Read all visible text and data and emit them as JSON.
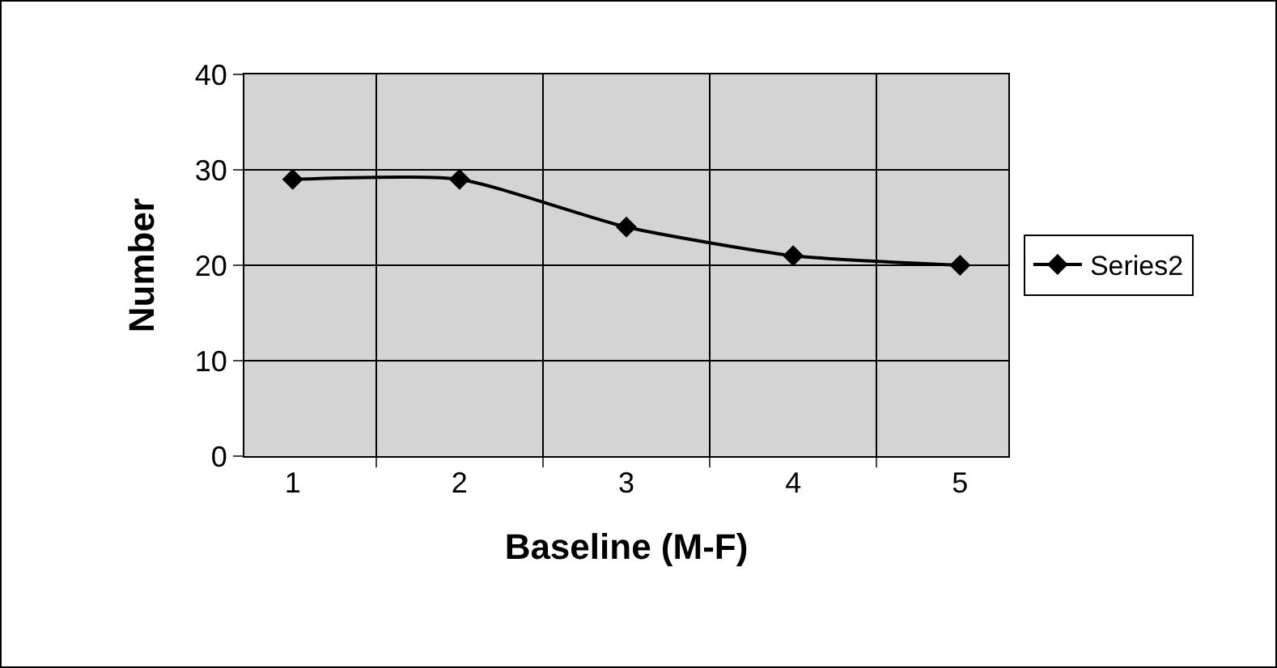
{
  "chart_data": {
    "type": "line",
    "xlabel": "Baseline (M-F)",
    "ylabel": "Number",
    "categories": [
      "1",
      "2",
      "3",
      "4",
      "5"
    ],
    "series": [
      {
        "name": "Series2",
        "color": "#000000",
        "values": [
          29,
          29,
          24,
          21,
          20
        ]
      }
    ],
    "ylim": [
      0,
      40
    ],
    "yticks": [
      0,
      10,
      20,
      30,
      40
    ],
    "grid": true,
    "legend": "right",
    "marker": "diamond",
    "line_style": "solid"
  }
}
